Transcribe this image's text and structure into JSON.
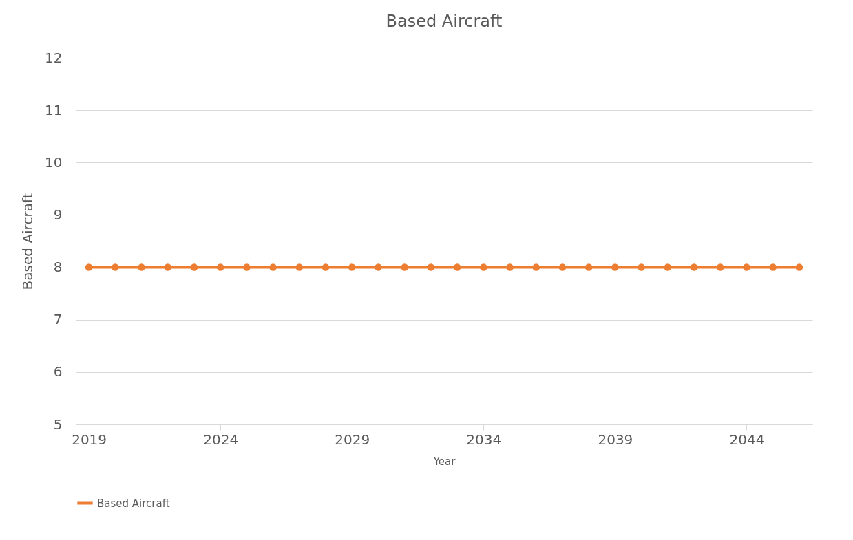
{
  "chart_data": {
    "type": "line",
    "title": "Based Aircraft",
    "xlabel": "Year",
    "ylabel": "Based Aircraft",
    "x": [
      2019,
      2020,
      2021,
      2022,
      2023,
      2024,
      2025,
      2026,
      2027,
      2028,
      2029,
      2030,
      2031,
      2032,
      2033,
      2034,
      2035,
      2036,
      2037,
      2038,
      2039,
      2040,
      2041,
      2042,
      2043,
      2044,
      2045,
      2046
    ],
    "series": [
      {
        "name": "Based Aircraft",
        "color": "#ed7d31",
        "values": [
          8,
          8,
          8,
          8,
          8,
          8,
          8,
          8,
          8,
          8,
          8,
          8,
          8,
          8,
          8,
          8,
          8,
          8,
          8,
          8,
          8,
          8,
          8,
          8,
          8,
          8,
          8,
          8
        ]
      }
    ],
    "xlim": [
      2018.5,
      2046.5
    ],
    "xticks": [
      2019,
      2024,
      2029,
      2034,
      2039,
      2044
    ],
    "ylim": [
      5,
      12
    ],
    "yticks": [
      5,
      6,
      7,
      8,
      9,
      10,
      11,
      12
    ],
    "grid": "y",
    "legend": "bottom",
    "marker": "circle",
    "line_style": "solid"
  }
}
